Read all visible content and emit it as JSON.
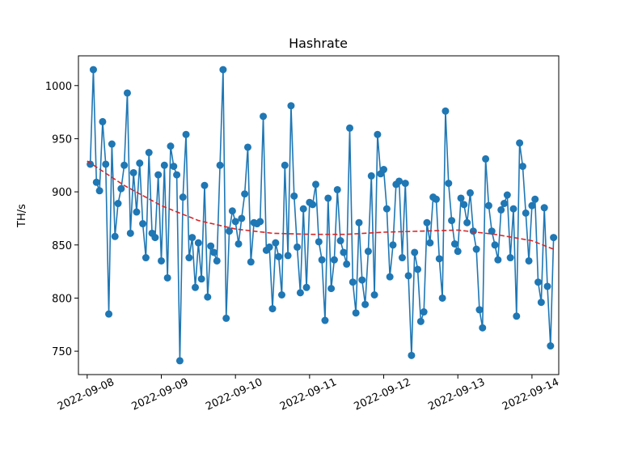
{
  "chart_data": {
    "type": "line",
    "title": "Hashrate",
    "xlabel": "",
    "ylabel": "TH/s",
    "x_start": "2022-09-08",
    "x_ticks": [
      "2022-09-08",
      "2022-09-09",
      "2022-09-10",
      "2022-09-11",
      "2022-09-12",
      "2022-09-13",
      "2022-09-14"
    ],
    "y_ticks": [
      750,
      800,
      850,
      900,
      950,
      1000
    ],
    "xlim": [
      "2022-09-07T21:10",
      "2022-09-14T08:40"
    ],
    "ylim": [
      728,
      1028
    ],
    "grid": false,
    "colors": {
      "series": "#1f77b4",
      "trend": "#d62728"
    },
    "series": [
      {
        "style": "line-with-markers",
        "x": [
          "2022-09-08T01:00",
          "2022-09-08T02:00",
          "2022-09-08T03:00",
          "2022-09-08T04:00",
          "2022-09-08T05:00",
          "2022-09-08T06:00",
          "2022-09-08T07:00",
          "2022-09-08T08:00",
          "2022-09-08T09:00",
          "2022-09-08T10:00",
          "2022-09-08T11:00",
          "2022-09-08T12:00",
          "2022-09-08T13:00",
          "2022-09-08T14:00",
          "2022-09-08T15:00",
          "2022-09-08T16:00",
          "2022-09-08T17:00",
          "2022-09-08T18:00",
          "2022-09-08T19:00",
          "2022-09-08T20:00",
          "2022-09-08T21:00",
          "2022-09-08T22:00",
          "2022-09-08T23:00",
          "2022-09-09T00:00",
          "2022-09-09T01:00",
          "2022-09-09T02:00",
          "2022-09-09T03:00",
          "2022-09-09T04:00",
          "2022-09-09T05:00",
          "2022-09-09T06:00",
          "2022-09-09T07:00",
          "2022-09-09T08:00",
          "2022-09-09T09:00",
          "2022-09-09T10:00",
          "2022-09-09T11:00",
          "2022-09-09T12:00",
          "2022-09-09T13:00",
          "2022-09-09T14:00",
          "2022-09-09T15:00",
          "2022-09-09T16:00",
          "2022-09-09T17:00",
          "2022-09-09T18:00",
          "2022-09-09T19:00",
          "2022-09-09T20:00",
          "2022-09-09T21:00",
          "2022-09-09T22:00",
          "2022-09-09T23:00",
          "2022-09-10T00:00",
          "2022-09-10T01:00",
          "2022-09-10T02:00",
          "2022-09-10T03:00",
          "2022-09-10T04:00",
          "2022-09-10T05:00",
          "2022-09-10T06:00",
          "2022-09-10T07:00",
          "2022-09-10T08:00",
          "2022-09-10T09:00",
          "2022-09-10T10:00",
          "2022-09-10T11:00",
          "2022-09-10T12:00",
          "2022-09-10T13:00",
          "2022-09-10T14:00",
          "2022-09-10T15:00",
          "2022-09-10T16:00",
          "2022-09-10T17:00",
          "2022-09-10T18:00",
          "2022-09-10T19:00",
          "2022-09-10T20:00",
          "2022-09-10T21:00",
          "2022-09-10T22:00",
          "2022-09-10T23:00",
          "2022-09-11T00:00",
          "2022-09-11T01:00",
          "2022-09-11T02:00",
          "2022-09-11T03:00",
          "2022-09-11T04:00",
          "2022-09-11T05:00",
          "2022-09-11T06:00",
          "2022-09-11T07:00",
          "2022-09-11T08:00",
          "2022-09-11T09:00",
          "2022-09-11T10:00",
          "2022-09-11T11:00",
          "2022-09-11T12:00",
          "2022-09-11T13:00",
          "2022-09-11T14:00",
          "2022-09-11T15:00",
          "2022-09-11T16:00",
          "2022-09-11T17:00",
          "2022-09-11T18:00",
          "2022-09-11T19:00",
          "2022-09-11T20:00",
          "2022-09-11T21:00",
          "2022-09-11T22:00",
          "2022-09-11T23:00",
          "2022-09-12T00:00",
          "2022-09-12T01:00",
          "2022-09-12T02:00",
          "2022-09-12T03:00",
          "2022-09-12T04:00",
          "2022-09-12T05:00",
          "2022-09-12T06:00",
          "2022-09-12T07:00",
          "2022-09-12T08:00",
          "2022-09-12T09:00",
          "2022-09-12T10:00",
          "2022-09-12T11:00",
          "2022-09-12T12:00",
          "2022-09-12T13:00",
          "2022-09-12T14:00",
          "2022-09-12T15:00",
          "2022-09-12T16:00",
          "2022-09-12T17:00",
          "2022-09-12T18:00",
          "2022-09-12T19:00",
          "2022-09-12T20:00",
          "2022-09-12T21:00",
          "2022-09-12T22:00",
          "2022-09-12T23:00",
          "2022-09-13T00:00",
          "2022-09-13T01:00",
          "2022-09-13T02:00",
          "2022-09-13T03:00",
          "2022-09-13T04:00",
          "2022-09-13T05:00",
          "2022-09-13T06:00",
          "2022-09-13T07:00",
          "2022-09-13T08:00",
          "2022-09-13T09:00",
          "2022-09-13T10:00",
          "2022-09-13T11:00",
          "2022-09-13T12:00",
          "2022-09-13T13:00",
          "2022-09-13T14:00",
          "2022-09-13T15:00",
          "2022-09-13T16:00",
          "2022-09-13T17:00",
          "2022-09-13T18:00",
          "2022-09-13T19:00",
          "2022-09-13T20:00",
          "2022-09-13T21:00",
          "2022-09-13T22:00",
          "2022-09-13T23:00",
          "2022-09-14T00:00",
          "2022-09-14T01:00",
          "2022-09-14T02:00",
          "2022-09-14T03:00",
          "2022-09-14T04:00",
          "2022-09-14T05:00",
          "2022-09-14T06:00",
          "2022-09-14T07:00"
        ],
        "y": [
          926,
          1015,
          909,
          901,
          966,
          926,
          785,
          945,
          858,
          889,
          903,
          925,
          993,
          861,
          918,
          881,
          927,
          870,
          838,
          937,
          861,
          857,
          916,
          835,
          925,
          819,
          943,
          924,
          916,
          741,
          895,
          954,
          838,
          857,
          810,
          852,
          818,
          906,
          801,
          849,
          843,
          835,
          925,
          1015,
          781,
          863,
          882,
          872,
          851,
          875,
          898,
          942,
          834,
          871,
          870,
          872,
          971,
          845,
          848,
          790,
          852,
          839,
          803,
          925,
          840,
          981,
          896,
          848,
          805,
          884,
          810,
          890,
          888,
          907,
          853,
          836,
          779,
          894,
          809,
          836,
          902,
          854,
          843,
          832,
          960,
          815,
          786,
          871,
          817,
          794,
          844,
          915,
          803,
          954,
          917,
          921,
          884,
          820,
          850,
          907,
          910,
          838,
          908,
          821,
          746,
          843,
          827,
          778,
          787,
          871,
          852,
          895,
          893,
          837,
          800,
          976,
          908,
          873,
          851,
          844,
          894,
          888,
          871,
          899,
          863,
          846,
          789,
          772,
          931,
          887,
          863,
          850,
          836,
          883,
          889,
          897,
          838,
          884,
          783,
          946,
          924,
          880,
          835,
          887,
          893,
          815,
          796,
          885,
          811,
          755,
          857
        ]
      },
      {
        "style": "dashed-trend",
        "x": [
          "2022-09-08T00:00",
          "2022-09-08T12:00",
          "2022-09-09T00:00",
          "2022-09-09T12:00",
          "2022-09-10T00:00",
          "2022-09-10T12:00",
          "2022-09-11T00:00",
          "2022-09-11T12:00",
          "2022-09-12T00:00",
          "2022-09-12T12:00",
          "2022-09-13T00:00",
          "2022-09-13T12:00",
          "2022-09-14T00:00",
          "2022-09-14T07:00"
        ],
        "y": [
          929,
          906,
          887,
          873,
          865,
          861,
          860,
          860,
          862,
          863,
          864,
          860,
          854,
          846
        ]
      }
    ]
  }
}
